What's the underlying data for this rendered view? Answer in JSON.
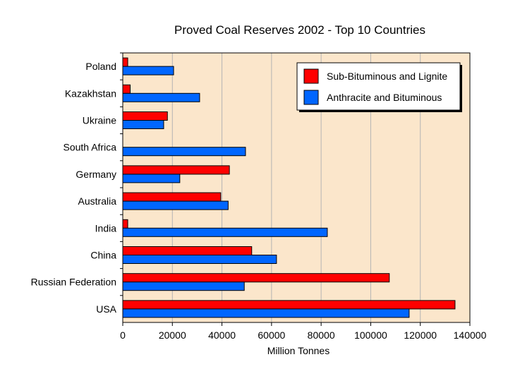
{
  "chart_data": {
    "type": "bar",
    "orientation": "horizontal",
    "title": "Proved Coal Reserves 2002 - Top 10 Countries",
    "xlabel": "Million Tonnes",
    "ylabel": "",
    "xlim": [
      0,
      140000
    ],
    "xticks": [
      0,
      20000,
      40000,
      60000,
      80000,
      100000,
      120000,
      140000
    ],
    "xtick_labels": [
      "0",
      "20000",
      "40000",
      "60000",
      "80000",
      "100000",
      "120000",
      "140000"
    ],
    "grid": true,
    "legend_position": "top-right",
    "categories": [
      "Poland",
      "Kazakhstan",
      "Ukraine",
      "South Africa",
      "Germany",
      "Australia",
      "India",
      "China",
      "Russian Federation",
      "USA"
    ],
    "series": [
      {
        "name": "Sub-Bituminous and Lignite",
        "color": "#ff0000",
        "values": [
          2000,
          3000,
          18000,
          0,
          43000,
          39500,
          2000,
          52000,
          107500,
          134000
        ]
      },
      {
        "name": "Anthracite and Bituminous",
        "color": "#0066ff",
        "values": [
          20500,
          31000,
          16500,
          49500,
          23000,
          42500,
          82500,
          62000,
          49000,
          115500
        ]
      }
    ],
    "plot_background": "#fbe6cb"
  }
}
